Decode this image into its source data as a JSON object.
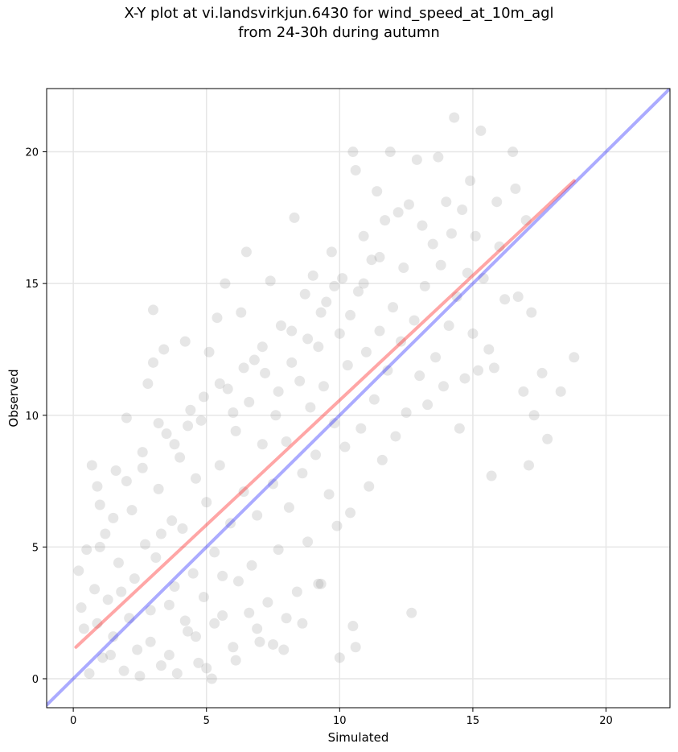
{
  "title_line1": "X-Y plot at vi.landsvirkjun.6430 for wind_speed_at_10m_agl",
  "title_line2": "from 24-30h during autumn",
  "chart_data": {
    "type": "scatter",
    "title": "X-Y plot at vi.landsvirkjun.6430 for wind_speed_at_10m_agl from 24-30h during autumn",
    "xlabel": "Simulated",
    "ylabel": "Observed",
    "xlim": [
      -1.0,
      22.4
    ],
    "ylim": [
      -1.1,
      22.4
    ],
    "xticks": [
      0,
      5,
      10,
      15,
      20
    ],
    "yticks": [
      0,
      5,
      10,
      15,
      20
    ],
    "grid": true,
    "point_color": "#808080",
    "point_opacity": 0.2,
    "identity_line": {
      "color": "#0000ff",
      "opacity": 0.33,
      "x": [
        -1.0,
        22.4
      ],
      "y": [
        -1.0,
        22.4
      ]
    },
    "fit_line": {
      "color": "#ff0000",
      "opacity": 0.35,
      "x": [
        0.1,
        18.8
      ],
      "y": [
        1.2,
        18.9
      ]
    },
    "points": [
      [
        0.3,
        2.7
      ],
      [
        0.5,
        4.9
      ],
      [
        0.7,
        8.1
      ],
      [
        0.9,
        7.3
      ],
      [
        1.0,
        6.6
      ],
      [
        0.4,
        1.9
      ],
      [
        0.6,
        0.2
      ],
      [
        0.8,
        3.4
      ],
      [
        1.1,
        0.8
      ],
      [
        1.2,
        5.5
      ],
      [
        1.3,
        3.0
      ],
      [
        1.5,
        1.6
      ],
      [
        1.6,
        7.9
      ],
      [
        1.7,
        4.4
      ],
      [
        1.9,
        0.3
      ],
      [
        2.0,
        9.9
      ],
      [
        2.1,
        2.3
      ],
      [
        2.2,
        6.4
      ],
      [
        2.3,
        3.8
      ],
      [
        2.5,
        0.1
      ],
      [
        2.6,
        8.6
      ],
      [
        2.7,
        5.1
      ],
      [
        2.8,
        11.2
      ],
      [
        2.9,
        1.4
      ],
      [
        3.0,
        14.0
      ],
      [
        3.0,
        12.0
      ],
      [
        3.1,
        4.6
      ],
      [
        3.2,
        7.2
      ],
      [
        3.3,
        0.5
      ],
      [
        3.4,
        12.5
      ],
      [
        3.5,
        9.3
      ],
      [
        3.6,
        2.8
      ],
      [
        3.7,
        6.0
      ],
      [
        3.8,
        3.5
      ],
      [
        3.9,
        0.2
      ],
      [
        4.0,
        8.4
      ],
      [
        4.1,
        5.7
      ],
      [
        4.2,
        12.8
      ],
      [
        4.3,
        1.8
      ],
      [
        4.4,
        10.2
      ],
      [
        4.5,
        4.0
      ],
      [
        4.6,
        7.6
      ],
      [
        4.7,
        0.6
      ],
      [
        4.8,
        9.8
      ],
      [
        4.9,
        3.1
      ],
      [
        5.0,
        6.7
      ],
      [
        5.1,
        12.4
      ],
      [
        5.2,
        0.0
      ],
      [
        5.3,
        4.8
      ],
      [
        5.4,
        13.7
      ],
      [
        5.5,
        8.1
      ],
      [
        5.6,
        2.4
      ],
      [
        5.7,
        15.0
      ],
      [
        5.8,
        11.0
      ],
      [
        5.9,
        5.9
      ],
      [
        6.0,
        1.2
      ],
      [
        6.1,
        9.4
      ],
      [
        6.2,
        3.7
      ],
      [
        6.3,
        13.9
      ],
      [
        6.4,
        7.1
      ],
      [
        6.5,
        16.2
      ],
      [
        6.6,
        10.5
      ],
      [
        6.7,
        4.3
      ],
      [
        6.8,
        12.1
      ],
      [
        6.9,
        6.2
      ],
      [
        7.0,
        1.4
      ],
      [
        7.1,
        8.9
      ],
      [
        7.2,
        11.6
      ],
      [
        7.3,
        2.9
      ],
      [
        7.4,
        15.1
      ],
      [
        7.5,
        7.4
      ],
      [
        7.6,
        10.0
      ],
      [
        7.7,
        4.9
      ],
      [
        7.8,
        13.4
      ],
      [
        7.9,
        1.1
      ],
      [
        8.0,
        9.0
      ],
      [
        8.1,
        6.5
      ],
      [
        8.2,
        12.0
      ],
      [
        8.3,
        17.5
      ],
      [
        8.4,
        3.3
      ],
      [
        8.5,
        11.3
      ],
      [
        8.6,
        7.8
      ],
      [
        8.7,
        14.6
      ],
      [
        8.8,
        5.2
      ],
      [
        8.9,
        10.3
      ],
      [
        9.0,
        15.3
      ],
      [
        9.1,
        8.5
      ],
      [
        9.2,
        12.6
      ],
      [
        9.3,
        3.6
      ],
      [
        9.4,
        11.1
      ],
      [
        9.5,
        14.3
      ],
      [
        9.6,
        7.0
      ],
      [
        9.7,
        16.2
      ],
      [
        9.8,
        9.7
      ],
      [
        9.9,
        5.8
      ],
      [
        10.0,
        13.1
      ],
      [
        10.0,
        0.8
      ],
      [
        10.1,
        15.2
      ],
      [
        10.2,
        8.8
      ],
      [
        10.3,
        11.9
      ],
      [
        10.4,
        6.3
      ],
      [
        10.5,
        20.0
      ],
      [
        10.5,
        2.0
      ],
      [
        10.6,
        19.3
      ],
      [
        10.6,
        1.2
      ],
      [
        10.7,
        14.7
      ],
      [
        10.8,
        9.5
      ],
      [
        10.9,
        16.8
      ],
      [
        11.0,
        12.4
      ],
      [
        11.1,
        7.3
      ],
      [
        11.2,
        15.9
      ],
      [
        11.3,
        10.6
      ],
      [
        11.4,
        18.5
      ],
      [
        11.5,
        13.2
      ],
      [
        11.6,
        8.3
      ],
      [
        11.7,
        17.4
      ],
      [
        11.8,
        11.7
      ],
      [
        11.9,
        20.0
      ],
      [
        12.0,
        14.1
      ],
      [
        12.1,
        9.2
      ],
      [
        12.2,
        17.7
      ],
      [
        12.3,
        12.8
      ],
      [
        12.4,
        15.6
      ],
      [
        12.5,
        10.1
      ],
      [
        12.6,
        18.0
      ],
      [
        12.7,
        2.5
      ],
      [
        12.8,
        13.6
      ],
      [
        12.9,
        19.7
      ],
      [
        13.0,
        11.5
      ],
      [
        13.1,
        17.2
      ],
      [
        13.2,
        14.9
      ],
      [
        13.3,
        10.4
      ],
      [
        13.5,
        16.5
      ],
      [
        13.6,
        12.2
      ],
      [
        13.7,
        19.8
      ],
      [
        13.8,
        15.7
      ],
      [
        13.9,
        11.1
      ],
      [
        14.0,
        18.1
      ],
      [
        14.1,
        13.4
      ],
      [
        14.2,
        16.9
      ],
      [
        14.3,
        21.3
      ],
      [
        14.4,
        14.5
      ],
      [
        14.5,
        9.5
      ],
      [
        14.6,
        17.8
      ],
      [
        14.7,
        11.4
      ],
      [
        14.8,
        15.4
      ],
      [
        14.9,
        18.9
      ],
      [
        15.0,
        13.1
      ],
      [
        15.1,
        16.8
      ],
      [
        15.2,
        11.7
      ],
      [
        15.3,
        20.8
      ],
      [
        15.4,
        15.2
      ],
      [
        15.6,
        12.5
      ],
      [
        15.7,
        7.7
      ],
      [
        15.8,
        11.8
      ],
      [
        15.9,
        18.1
      ],
      [
        16.0,
        16.4
      ],
      [
        16.2,
        14.4
      ],
      [
        16.5,
        20.0
      ],
      [
        16.6,
        18.6
      ],
      [
        16.7,
        14.5
      ],
      [
        16.9,
        10.9
      ],
      [
        17.1,
        8.1
      ],
      [
        17.2,
        13.9
      ],
      [
        17.3,
        10.0
      ],
      [
        17.6,
        11.6
      ],
      [
        17.8,
        9.1
      ],
      [
        18.3,
        10.9
      ],
      [
        18.8,
        12.2
      ],
      [
        17.0,
        17.4
      ],
      [
        0.2,
        4.1
      ],
      [
        0.9,
        2.1
      ],
      [
        1.4,
        0.9
      ],
      [
        1.8,
        3.3
      ],
      [
        2.4,
        1.1
      ],
      [
        2.9,
        2.6
      ],
      [
        3.3,
        5.5
      ],
      [
        3.6,
        0.9
      ],
      [
        4.2,
        2.2
      ],
      [
        4.6,
        1.6
      ],
      [
        5.0,
        0.4
      ],
      [
        5.3,
        2.1
      ],
      [
        5.6,
        3.9
      ],
      [
        6.1,
        0.7
      ],
      [
        6.6,
        2.5
      ],
      [
        6.9,
        1.9
      ],
      [
        7.5,
        1.3
      ],
      [
        8.0,
        2.3
      ],
      [
        8.6,
        2.1
      ],
      [
        9.2,
        3.6
      ],
      [
        1.0,
        5.0
      ],
      [
        1.5,
        6.1
      ],
      [
        2.0,
        7.5
      ],
      [
        2.6,
        8.0
      ],
      [
        3.2,
        9.7
      ],
      [
        3.8,
        8.9
      ],
      [
        4.3,
        9.6
      ],
      [
        4.9,
        10.7
      ],
      [
        5.5,
        11.2
      ],
      [
        6.0,
        10.1
      ],
      [
        6.4,
        11.8
      ],
      [
        7.1,
        12.6
      ],
      [
        7.7,
        10.9
      ],
      [
        8.2,
        13.2
      ],
      [
        8.8,
        12.9
      ],
      [
        9.3,
        13.9
      ],
      [
        9.8,
        14.9
      ],
      [
        10.4,
        13.8
      ],
      [
        10.9,
        15.0
      ],
      [
        11.5,
        16.0
      ]
    ]
  }
}
